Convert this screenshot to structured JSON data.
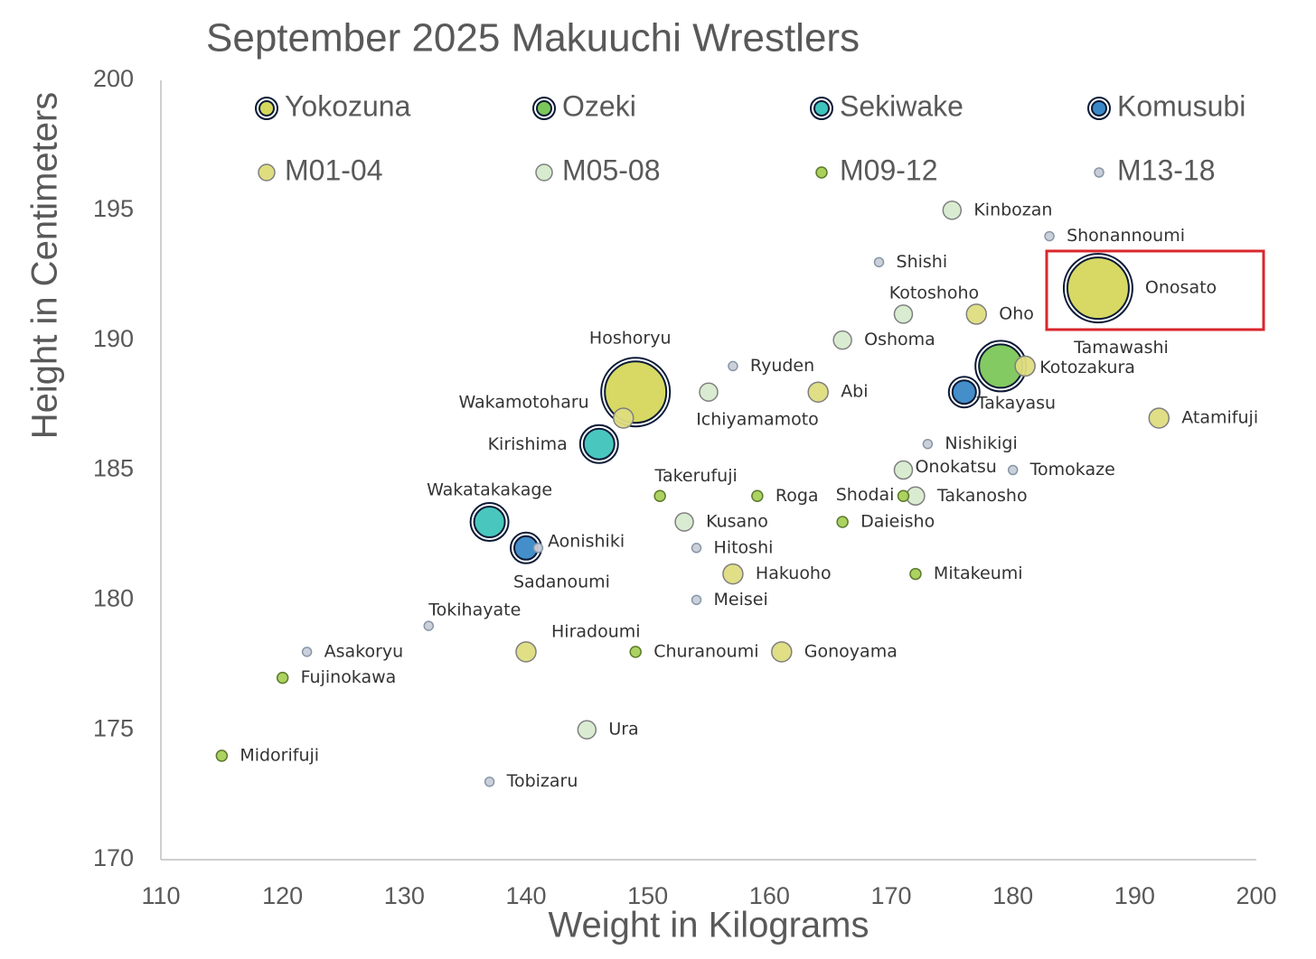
{
  "chart_data": {
    "type": "bubble",
    "title": "September 2025 Makuuchi Wrestlers",
    "x_label": "Weight in Kilograms",
    "y_label": "Height in Centimeters",
    "xlim": [
      110,
      200
    ],
    "xticks": [
      110,
      120,
      130,
      140,
      150,
      160,
      170,
      180,
      190,
      200
    ],
    "ylim": [
      170,
      200
    ],
    "yticks": [
      170,
      175,
      180,
      185,
      190,
      195,
      200
    ],
    "legend": "top",
    "series": [
      {
        "name": "Yokozuna",
        "color": "#d5d75c",
        "stroke": "#0b1a36",
        "ring": true,
        "size": 34,
        "labels": [
          "Onosato",
          "Hoshoryu"
        ],
        "x": [
          187,
          149
        ],
        "values": [
          192,
          188
        ]
      },
      {
        "name": "Ozeki",
        "color": "#7cc75a",
        "stroke": "#0b1a36",
        "ring": true,
        "size": 24,
        "labels": [
          "Kotozakura"
        ],
        "x": [
          179
        ],
        "values": [
          189
        ]
      },
      {
        "name": "Sekiwake",
        "color": "#3fc4bb",
        "stroke": "#0b1a36",
        "ring": true,
        "size": 17,
        "labels": [
          "Kirishima",
          "Wakatakakage"
        ],
        "x": [
          146,
          137
        ],
        "values": [
          186,
          183
        ]
      },
      {
        "name": "Komusubi",
        "color": "#3a88c6",
        "stroke": "#0b1a36",
        "ring": true,
        "size": 13,
        "labels": [
          "Takayasu",
          "Aonishiki"
        ],
        "x": [
          176,
          140
        ],
        "values": [
          188,
          182
        ]
      },
      {
        "name": "M01-04",
        "color": "#dedd7f",
        "stroke": "#7f7f7f",
        "ring": false,
        "size": 11,
        "labels": [
          "Oho",
          "Tamawashi",
          "Abi",
          "Wakamotoharu",
          "Atamifuji",
          "Hakuoho",
          "Hiradoumi",
          "Gonoyama"
        ],
        "x": [
          177,
          181,
          164,
          148,
          192,
          157,
          140,
          161
        ],
        "values": [
          191,
          189,
          188,
          187,
          187,
          181,
          178,
          178
        ]
      },
      {
        "name": "M05-08",
        "color": "#d7ebcf",
        "stroke": "#7f7f7f",
        "ring": false,
        "size": 10,
        "labels": [
          "Kinbozan",
          "Kotoshoho",
          "Oshoma",
          "Ichiyamamoto",
          "Onokatsu",
          "Takanosho",
          "Kusano",
          "Ura"
        ],
        "x": [
          175,
          171,
          166,
          155,
          171,
          172,
          153,
          145
        ],
        "values": [
          195,
          191,
          190,
          188,
          185,
          184,
          183,
          175
        ]
      },
      {
        "name": "M09-12",
        "color": "#a8d05a",
        "stroke": "#5c7a2a",
        "ring": false,
        "size": 6,
        "labels": [
          "Takerufuji",
          "Roga",
          "Shodai",
          "Daieisho",
          "Mitakeumi",
          "Churanoumi",
          "Fujinokawa",
          "Midorifuji"
        ],
        "x": [
          151,
          159,
          171,
          166,
          172,
          149,
          120,
          115
        ],
        "values": [
          184,
          184,
          184,
          183,
          181,
          178,
          177,
          174
        ]
      },
      {
        "name": "M13-18",
        "color": "#c9cdd8",
        "stroke": "#8797a8",
        "ring": false,
        "size": 5,
        "labels": [
          "Shonannoumi",
          "Shishi",
          "Ryuden",
          "Nishikigi",
          "Tomokaze",
          "Hitoshi",
          "Meisei",
          "Tokihayate",
          "Asakoryu",
          "Tobizaru",
          "Sadanoumi"
        ],
        "x": [
          183,
          169,
          157,
          173,
          180,
          154,
          154,
          132,
          122,
          137,
          141
        ],
        "values": [
          194,
          193,
          189,
          186,
          185,
          182,
          180,
          179,
          178,
          173,
          182
        ]
      }
    ]
  }
}
